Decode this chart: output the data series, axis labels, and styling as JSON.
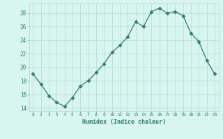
{
  "x": [
    0,
    1,
    2,
    3,
    4,
    5,
    6,
    7,
    8,
    9,
    10,
    11,
    12,
    13,
    14,
    15,
    16,
    17,
    18,
    19,
    20,
    21,
    22,
    23
  ],
  "y": [
    19.0,
    17.5,
    15.8,
    14.8,
    14.2,
    15.5,
    17.2,
    18.0,
    19.2,
    20.5,
    22.2,
    23.2,
    24.5,
    26.7,
    26.0,
    28.2,
    28.7,
    28.0,
    28.2,
    27.6,
    25.0,
    23.8,
    21.0,
    19.0
  ],
  "xlabel": "Humidex (Indice chaleur)",
  "ylabel": "",
  "xlim": [
    -0.5,
    23.5
  ],
  "ylim": [
    13.5,
    29.5
  ],
  "yticks": [
    14,
    16,
    18,
    20,
    22,
    24,
    26,
    28
  ],
  "xticks": [
    0,
    1,
    2,
    3,
    4,
    5,
    6,
    7,
    8,
    9,
    10,
    11,
    12,
    13,
    14,
    15,
    16,
    17,
    18,
    19,
    20,
    21,
    22,
    23
  ],
  "line_color": "#2e7d6e",
  "marker": "D",
  "marker_size": 2.5,
  "bg_color": "#d8f5f0",
  "grid_color": "#b8ddd8",
  "tick_color": "#2e7d6e",
  "label_color": "#2e7d6e"
}
